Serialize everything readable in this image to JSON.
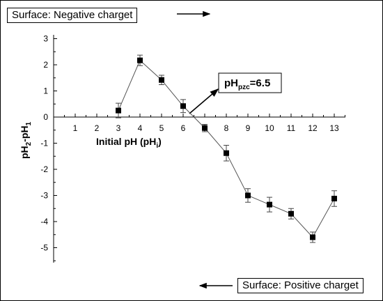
{
  "annotations": {
    "top_left": "Surface: Negative charget",
    "bottom_right": "Surface: Positive charget",
    "pzc_main": "pH",
    "pzc_sub": "pzc",
    "pzc_value": "=6.5"
  },
  "colors": {
    "line": "#555555",
    "marker": "#000000",
    "axis": "#000000"
  },
  "chart_data": {
    "type": "line",
    "x": [
      3,
      4,
      5,
      6,
      7,
      8,
      9,
      10,
      11,
      12,
      13
    ],
    "values": [
      0.25,
      2.17,
      1.42,
      0.42,
      -0.42,
      -1.38,
      -3.0,
      -3.35,
      -3.7,
      -4.6,
      -3.12
    ],
    "error": [
      0.28,
      0.2,
      0.18,
      0.25,
      0.14,
      0.3,
      0.26,
      0.28,
      0.2,
      0.2,
      0.3
    ],
    "xlim": [
      0,
      13.6
    ],
    "ylim": [
      -5.5,
      3.3
    ],
    "x_ticks": [
      1,
      2,
      3,
      4,
      5,
      6,
      7,
      8,
      9,
      10,
      11,
      12,
      13
    ],
    "y_ticks": [
      -5,
      -4,
      -3,
      -2,
      -1,
      0,
      1,
      2,
      3
    ],
    "xlabel": {
      "main": "Initial pH (pH",
      "sub": "i",
      "close": ")"
    },
    "ylabel": {
      "p1": "pH",
      "s1": "2",
      "p2": "-pH",
      "s2": "1"
    },
    "marker": "square",
    "grid": false
  }
}
